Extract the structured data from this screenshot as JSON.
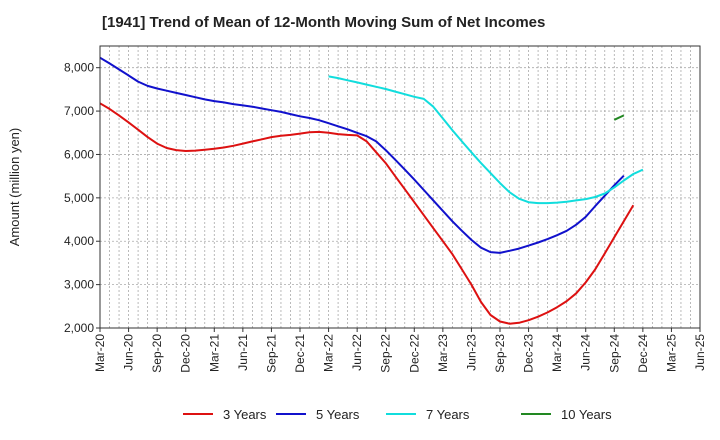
{
  "chart_data": {
    "type": "line",
    "title": "[1941]  Trend of Mean of 12-Month Moving Sum of Net Incomes",
    "xlabel": "",
    "ylabel": "Amount (million yen)",
    "ylim": [
      2000,
      8500
    ],
    "yticks": [
      2000,
      3000,
      4000,
      5000,
      6000,
      7000,
      8000
    ],
    "ytick_labels": [
      "2,000",
      "3,000",
      "4,000",
      "5,000",
      "6,000",
      "7,000",
      "8,000"
    ],
    "x_tick_labels": [
      "Mar-20",
      "Jun-20",
      "Sep-20",
      "Dec-20",
      "Mar-21",
      "Jun-21",
      "Sep-21",
      "Dec-21",
      "Mar-22",
      "Jun-22",
      "Sep-22",
      "Dec-22",
      "Mar-23",
      "Jun-23",
      "Sep-23",
      "Dec-23",
      "Mar-24",
      "Jun-24",
      "Sep-24",
      "Dec-24",
      "Mar-25",
      "Jun-25"
    ],
    "grid": true,
    "legend_position": "bottom",
    "series": [
      {
        "name": "3 Years",
        "color": "#dd1111",
        "start_index": 0,
        "values": [
          7180,
          7050,
          6900,
          6740,
          6570,
          6400,
          6250,
          6150,
          6100,
          6080,
          6090,
          6110,
          6130,
          6160,
          6200,
          6250,
          6300,
          6350,
          6400,
          6430,
          6450,
          6480,
          6510,
          6520,
          6500,
          6470,
          6450,
          6440,
          6300,
          6050,
          5800,
          5500,
          5200,
          4900,
          4600,
          4300,
          4000,
          3700,
          3350,
          3000,
          2600,
          2300,
          2150,
          2100,
          2120,
          2180,
          2260,
          2360,
          2480,
          2620,
          2800,
          3050,
          3350,
          3720,
          4090,
          4460,
          4830
        ]
      },
      {
        "name": "5 Years",
        "color": "#1111cc",
        "start_index": 0,
        "values": [
          8230,
          8100,
          7960,
          7820,
          7680,
          7580,
          7520,
          7470,
          7420,
          7370,
          7320,
          7270,
          7230,
          7200,
          7160,
          7130,
          7100,
          7060,
          7020,
          6980,
          6930,
          6880,
          6840,
          6790,
          6720,
          6650,
          6580,
          6500,
          6420,
          6300,
          6100,
          5880,
          5650,
          5420,
          5180,
          4940,
          4700,
          4460,
          4240,
          4030,
          3850,
          3750,
          3730,
          3780,
          3830,
          3900,
          3970,
          4050,
          4140,
          4240,
          4380,
          4560,
          4810,
          5050,
          5290,
          5510
        ]
      },
      {
        "name": "7 Years",
        "color": "#11dddd",
        "start_index": 24,
        "values": [
          7800,
          7760,
          7710,
          7660,
          7610,
          7560,
          7510,
          7450,
          7390,
          7330,
          7280,
          7100,
          6830,
          6560,
          6300,
          6050,
          5800,
          5570,
          5340,
          5130,
          4980,
          4900,
          4880,
          4880,
          4890,
          4910,
          4940,
          4970,
          5020,
          5100,
          5240,
          5400,
          5550,
          5650
        ]
      },
      {
        "name": "10 Years",
        "color": "#228822",
        "start_index": 54,
        "values": [
          6800,
          6900
        ]
      }
    ]
  }
}
